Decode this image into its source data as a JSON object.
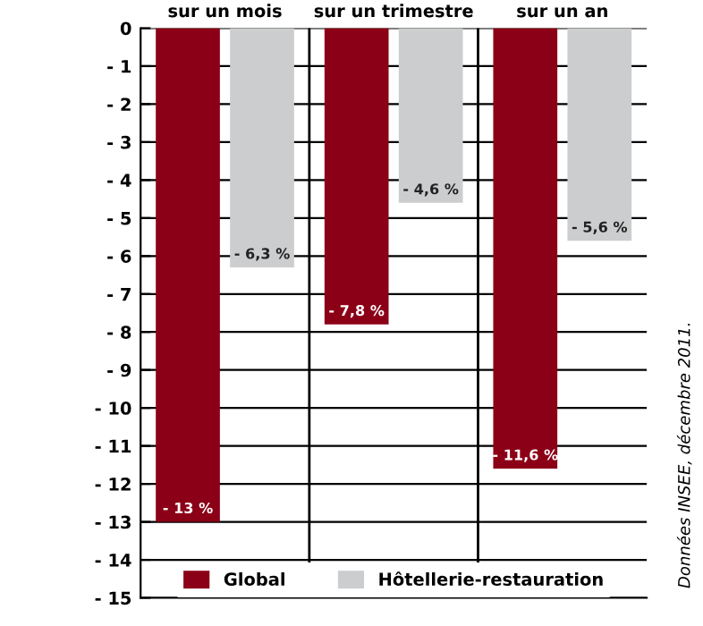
{
  "chart_data": {
    "type": "bar",
    "categories": [
      "sur un mois",
      "sur un trimestre",
      "sur un an"
    ],
    "series": [
      {
        "name": "Global",
        "color": "#8b0017",
        "values": [
          -13,
          -7.8,
          -11.6
        ],
        "value_labels": [
          "- 13 %",
          "- 7,8 %",
          "- 11,6 %"
        ]
      },
      {
        "name": "Hôtellerie-restauration",
        "color": "#cccdcf",
        "values": [
          -6.3,
          -4.6,
          -5.6
        ],
        "value_labels": [
          "- 6,3 %",
          "- 4,6 %",
          "- 5,6 %"
        ]
      }
    ],
    "ylim": [
      -15,
      0
    ],
    "yticks": [
      0,
      {
        "value": -1,
        "label": "- 1"
      },
      {
        "value": -2,
        "label": "- 2"
      },
      {
        "value": -3,
        "label": "- 3"
      },
      {
        "value": -4,
        "label": "- 4"
      },
      {
        "value": -5,
        "label": "- 5"
      },
      {
        "value": -6,
        "label": "- 6"
      },
      {
        "value": -7,
        "label": "- 7"
      },
      {
        "value": -8,
        "label": "- 8"
      },
      {
        "value": -9,
        "label": "- 9"
      },
      {
        "value": -10,
        "label": "- 10"
      },
      {
        "value": -11,
        "label": "- 11"
      },
      {
        "value": -12,
        "label": "- 12"
      },
      {
        "value": -13,
        "label": "- 13"
      },
      {
        "value": -14,
        "label": "- 14"
      },
      {
        "value": -15,
        "label": "- 15"
      }
    ],
    "grid": true,
    "legend": "bottom",
    "annotations": [
      "Données INSEE, décembre 2011."
    ]
  }
}
